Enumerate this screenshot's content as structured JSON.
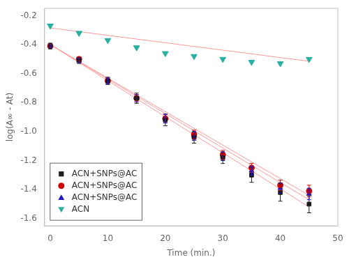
{
  "chart_data": {
    "type": "scatter",
    "xlabel": "Time (min.)",
    "ylabel": "log(A∞ - At)",
    "xlim": [
      -1,
      50
    ],
    "ylim": [
      -1.65,
      -0.15
    ],
    "xticks": [
      0,
      10,
      20,
      30,
      40,
      50
    ],
    "yticks": [
      -1.6,
      -1.4,
      -1.2,
      {
        "value": -1.0,
        "label": "-1.0"
      },
      -0.8,
      -0.6,
      -0.4,
      -0.2
    ],
    "grid": false,
    "legend": "lower left",
    "series": [
      {
        "type": "line",
        "color": "#ff9999",
        "x": [
          0,
          45
        ],
        "values": [
          -0.4,
          -1.52
        ]
      },
      {
        "type": "line",
        "color": "#ff9999",
        "x": [
          0,
          45
        ],
        "values": [
          -0.4,
          -1.44
        ]
      },
      {
        "type": "line",
        "color": "#ff9999",
        "x": [
          0,
          45
        ],
        "values": [
          -0.4,
          -1.47
        ]
      },
      {
        "type": "line",
        "color": "#ff9999",
        "x": [
          0,
          45
        ],
        "values": [
          -0.285,
          -0.515
        ]
      },
      {
        "name": "ACN+SNPs@AC",
        "type": "scatter",
        "color": "#1a1a1a",
        "marker": "square",
        "x": [
          0,
          5,
          10,
          15,
          20,
          25,
          30,
          35,
          40,
          45
        ],
        "values": [
          -0.41,
          -0.51,
          -0.65,
          -0.77,
          -0.92,
          -1.04,
          -1.18,
          -1.3,
          -1.42,
          -1.5
        ],
        "errors": [
          0.02,
          0.02,
          0.025,
          0.035,
          0.04,
          0.04,
          0.04,
          0.05,
          0.06,
          0.06
        ]
      },
      {
        "name": "ACN+SNPs@AC",
        "type": "scatter",
        "color": "#cc0000",
        "marker": "circle",
        "x": [
          0,
          5,
          10,
          15,
          20,
          25,
          30,
          35,
          40,
          45
        ],
        "values": [
          -0.41,
          -0.5,
          -0.65,
          -0.77,
          -0.91,
          -1.02,
          -1.16,
          -1.25,
          -1.37,
          -1.41
        ],
        "errors": [
          0.01,
          0.015,
          0.02,
          0.025,
          0.03,
          0.03,
          0.03,
          0.03,
          0.035,
          0.04
        ]
      },
      {
        "name": "ACN+SNPs@AC",
        "type": "scatter",
        "color": "#1a1acc",
        "marker": "triangle-up",
        "x": [
          0,
          5,
          10,
          15,
          20,
          25,
          30,
          35,
          40,
          45
        ],
        "values": [
          -0.41,
          -0.51,
          -0.65,
          -0.77,
          -0.91,
          -1.03,
          -1.17,
          -1.27,
          -1.39,
          -1.43
        ],
        "errors": [
          0.01,
          0.015,
          0.02,
          0.025,
          0.03,
          0.03,
          0.03,
          0.03,
          0.035,
          0.04
        ]
      },
      {
        "name": "ACN",
        "type": "scatter",
        "color": "#2ab0a0",
        "marker": "triangle-down",
        "x": [
          0,
          5,
          10,
          15,
          20,
          25,
          30,
          35,
          40,
          45
        ],
        "values": [
          -0.27,
          -0.32,
          -0.37,
          -0.42,
          -0.46,
          -0.48,
          -0.5,
          -0.52,
          -0.53,
          -0.5
        ]
      }
    ]
  }
}
